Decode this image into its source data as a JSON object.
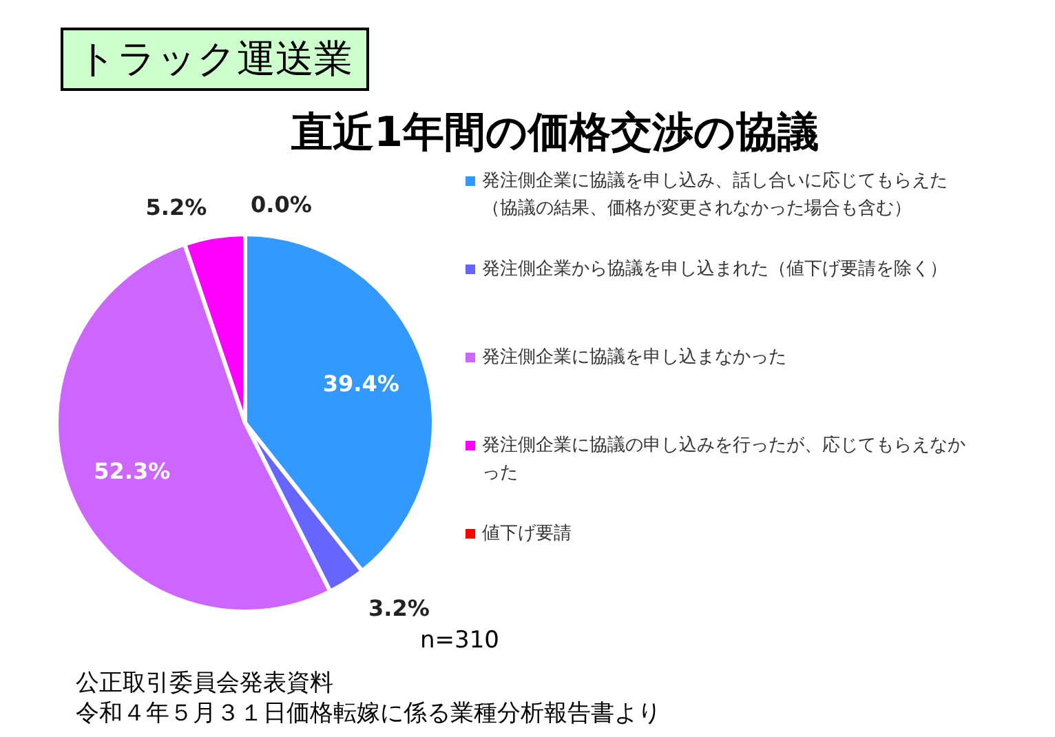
{
  "chart_data": {
    "type": "pie",
    "title": "トラック運送業",
    "subtitle": "直近1年間の価格交渉の協議",
    "categories": [
      "発注側企業に協議を申し込み、話し合いに応じてもらえた（協議の結果、価格が変更されなかった場合も含む）",
      "発注側企業から協議を申し込まれた（値下げ要請を除く）",
      "発注側企業に協議を申し込まなかった",
      "発注側企業に協議の申し込みを行ったが、応じてもらえなかった",
      "値下げ要請"
    ],
    "values": [
      39.4,
      3.2,
      52.3,
      5.2,
      0.0
    ],
    "colors": [
      "#3399ff",
      "#6666ff",
      "#cc66ff",
      "#ff00ff",
      "#ff0000"
    ],
    "value_labels": [
      "39.4%",
      "3.2%",
      "52.3%",
      "5.2%",
      "0.0%"
    ],
    "legend": "right",
    "annotations": [
      "n=310",
      "公正取引委員会発表資料",
      "令和４年５月３１日価格転嫁に係る業種分析報告書より"
    ]
  }
}
